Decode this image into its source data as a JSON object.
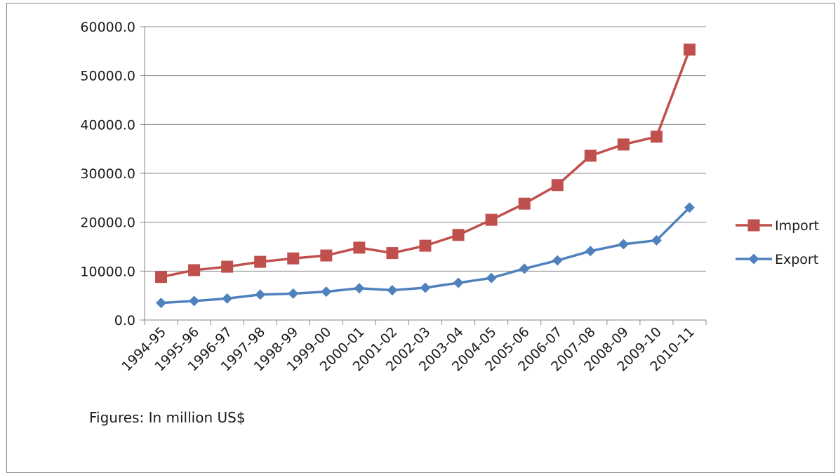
{
  "chart_data": {
    "type": "line",
    "title": "",
    "xlabel": "",
    "ylabel": "",
    "ylim": [
      0,
      60000
    ],
    "yticks": [
      "0.0",
      "10000.0",
      "20000.0",
      "30000.0",
      "40000.0",
      "50000.0",
      "60000.0"
    ],
    "grid": "horizontal",
    "legend_position": "right",
    "categories": [
      "1994-95",
      "1995-96",
      "1996-97",
      "1997-98",
      "1998-99",
      "1999-00",
      "2000-01",
      "2001-02",
      "2002-03",
      "2003-04",
      "2004-05",
      "2005-06",
      "2006-07",
      "2007-08",
      "2008-09",
      "2009-10",
      "2010-11"
    ],
    "series": [
      {
        "name": "Import",
        "color": "#C0504D",
        "marker": "square",
        "values": [
          8800,
          10200,
          10900,
          11900,
          12600,
          13200,
          14800,
          13700,
          15200,
          17400,
          20500,
          23800,
          27600,
          33600,
          35900,
          37500,
          55300
        ]
      },
      {
        "name": "Export",
        "color": "#4F81BD",
        "marker": "diamond",
        "values": [
          3500,
          3900,
          4400,
          5200,
          5400,
          5800,
          6500,
          6100,
          6600,
          7600,
          8600,
          10500,
          12200,
          14100,
          15500,
          16300,
          23000
        ]
      }
    ],
    "annotation": "Figures: In million US$"
  }
}
